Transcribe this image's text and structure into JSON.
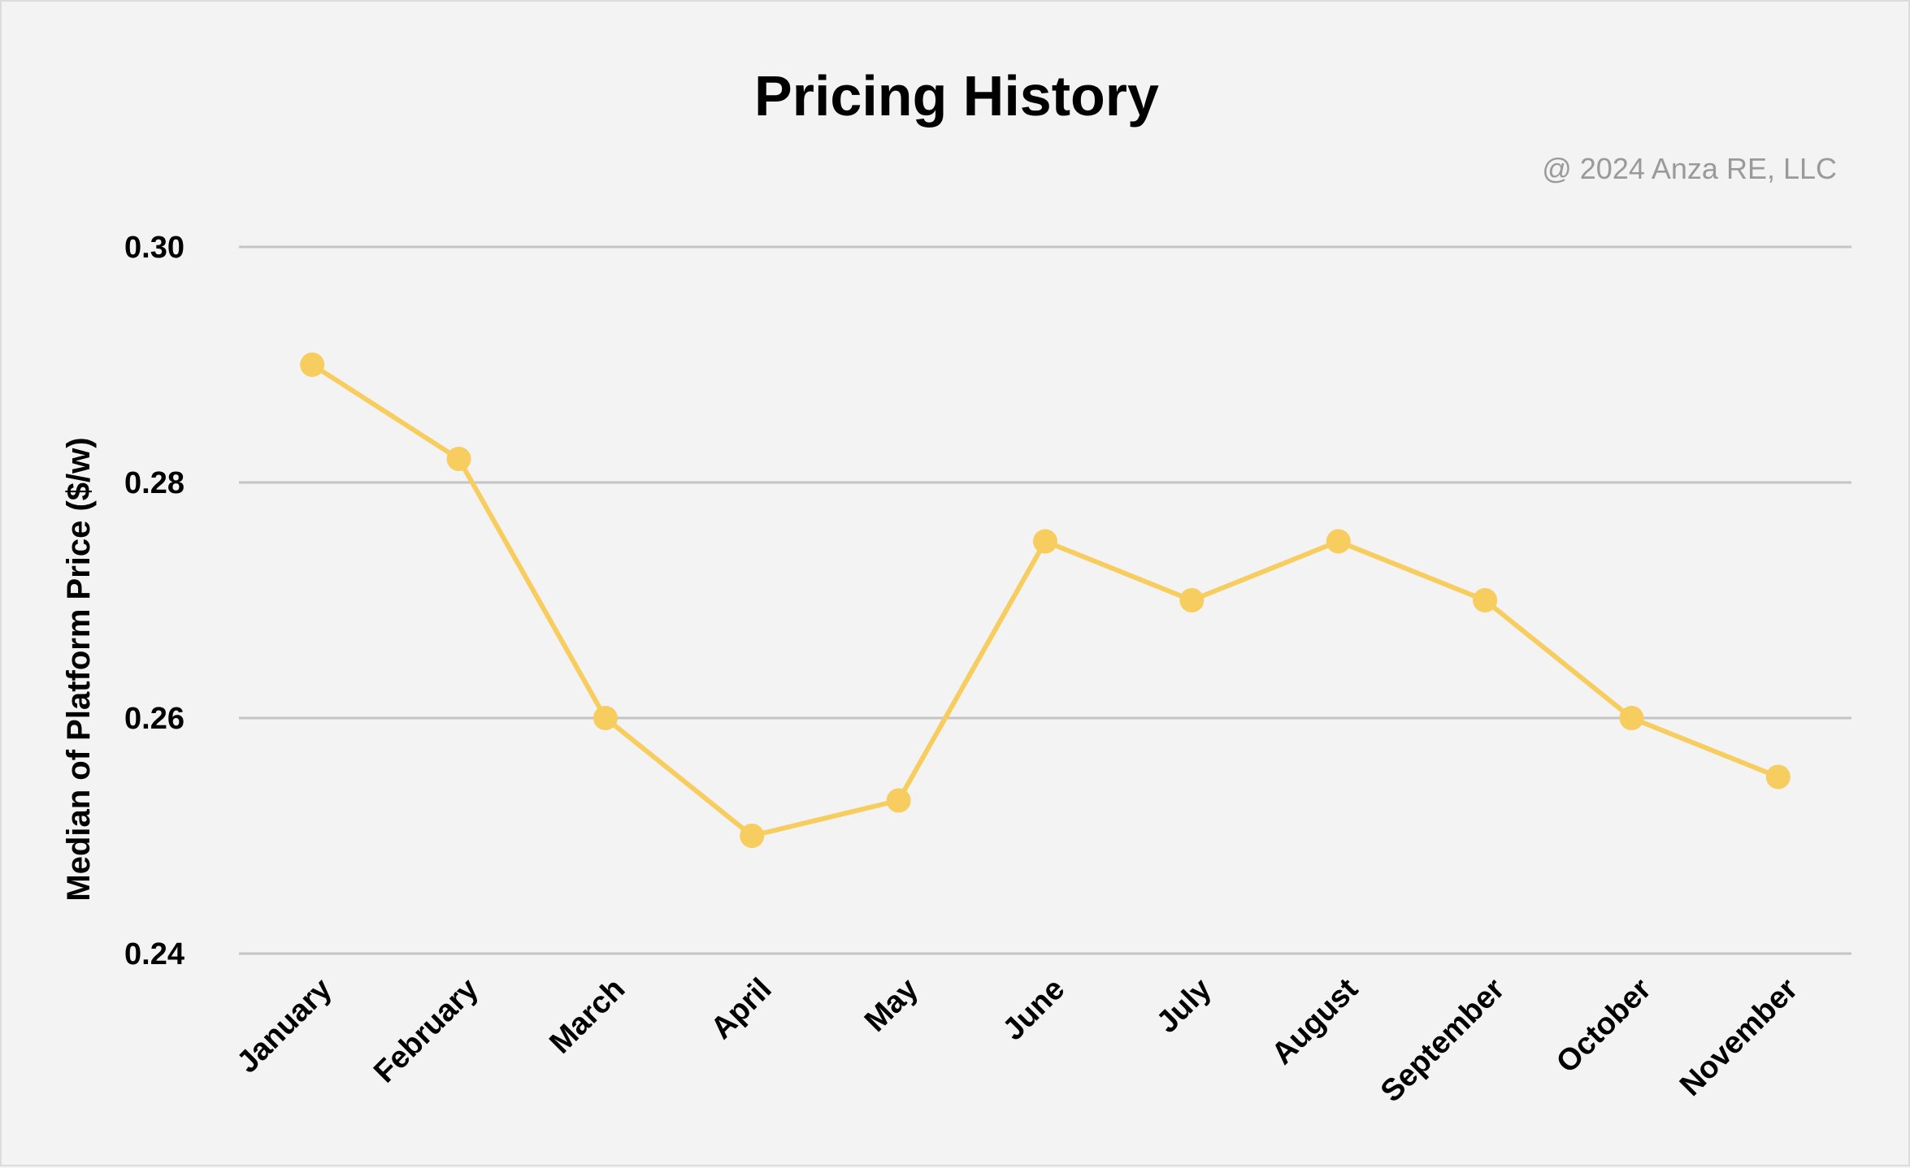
{
  "chart_data": {
    "type": "line",
    "title": "Pricing History",
    "annotation": "@ 2024 Anza RE, LLC",
    "xlabel": "",
    "ylabel": "Median of Platform Price ($/w)",
    "categories": [
      "January",
      "February",
      "March",
      "April",
      "May",
      "June",
      "July",
      "August",
      "September",
      "October",
      "November"
    ],
    "series": [
      {
        "values": [
          0.29,
          0.282,
          0.26,
          0.25,
          0.253,
          0.275,
          0.27,
          0.275,
          0.27,
          0.26,
          0.255
        ]
      }
    ],
    "ylim": [
      0.24,
      0.3
    ],
    "yticks": [
      "0.24",
      "0.26",
      "0.28",
      "0.30"
    ],
    "grid": true,
    "colors": {
      "line": "#f6cd5e",
      "grid": "#c4c4c4",
      "background": "#f3f3f3"
    }
  }
}
